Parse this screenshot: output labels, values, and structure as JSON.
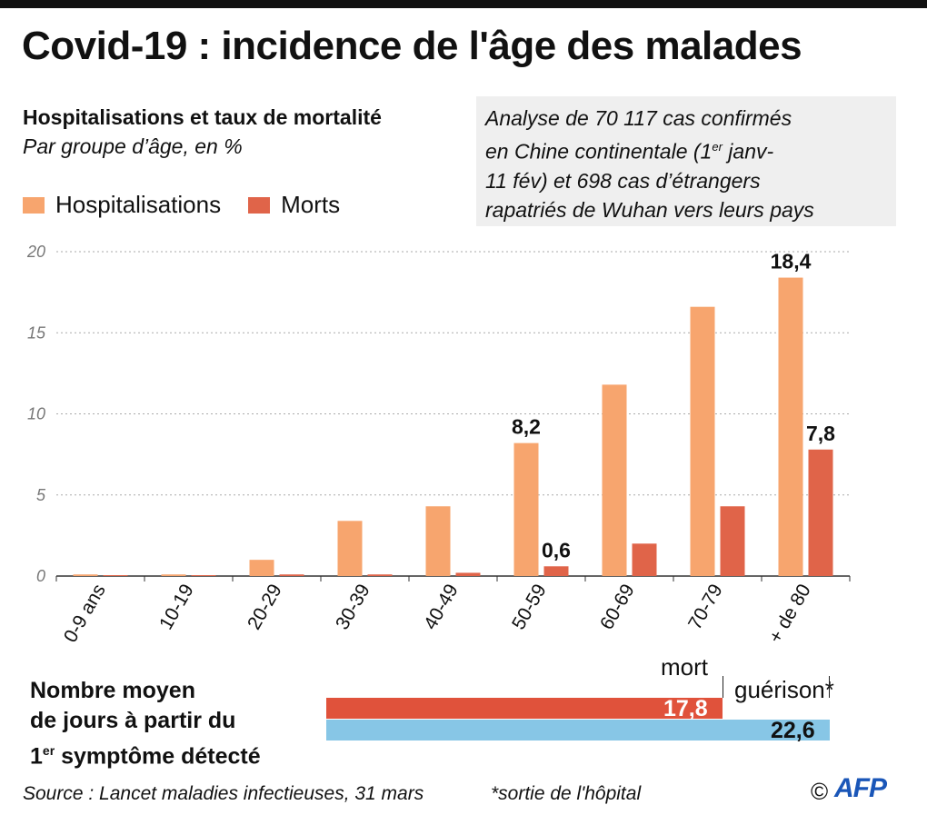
{
  "title": "Covid-19 : incidence de l'âge des malades",
  "subtitle": "Hospitalisations et taux de mortalité",
  "subtitle2": "Par groupe d’âge, en %",
  "legend": {
    "hosp": "Hospitalisations",
    "death": "Morts"
  },
  "note": {
    "line1": "Analyse de 70 117 cas confirmés",
    "line2_a": "en Chine continentale (1",
    "line2_sup": "er",
    "line2_b": " janv-",
    "line3": "11 fév) et 698 cas d’étrangers",
    "line4": "rapatriés de Wuhan vers leurs pays"
  },
  "colors": {
    "hosp": "#f7a56e",
    "death": "#e06449",
    "bar_death": "#e0523b",
    "bar_recovery": "#87c6e6",
    "grid": "#aaaaaa",
    "note_bg": "#efefef"
  },
  "chart_data": {
    "type": "bar",
    "categories": [
      "0-9 ans",
      "10-19",
      "20-29",
      "30-39",
      "40-49",
      "50-59",
      "60-69",
      "70-79",
      "+ de 80"
    ],
    "series": [
      {
        "name": "Hospitalisations",
        "values": [
          0.1,
          0.1,
          1.0,
          3.4,
          4.3,
          8.2,
          11.8,
          16.6,
          18.4
        ]
      },
      {
        "name": "Morts",
        "values": [
          0,
          0,
          0.1,
          0.1,
          0.2,
          0.6,
          2.0,
          4.3,
          7.8
        ]
      }
    ],
    "yticks": [
      0,
      5,
      10,
      15,
      20
    ],
    "ylim": [
      0,
      20
    ],
    "grid": true,
    "data_labels": [
      {
        "series": 0,
        "index": 5,
        "text": "8,2"
      },
      {
        "series": 0,
        "index": 8,
        "text": "18,4"
      },
      {
        "series": 1,
        "index": 5,
        "text": "0,6"
      },
      {
        "series": 1,
        "index": 8,
        "text": "7,8"
      }
    ]
  },
  "days": {
    "label_line1": "Nombre moyen",
    "label_line2": "de jours à partir du",
    "label_line3_a": "1",
    "label_line3_sup": "er",
    "label_line3_b": " symptôme détecté",
    "death_label": "mort",
    "death_value": 17.8,
    "death_text": "17,8",
    "recovery_label": "guérison*",
    "recovery_value": 22.6,
    "recovery_text": "22,6"
  },
  "source": "Source :  Lancet maladies infectieuses, 31 mars",
  "footnote": "*sortie de l'hôpital",
  "copyright": "©",
  "logo": "AFP"
}
